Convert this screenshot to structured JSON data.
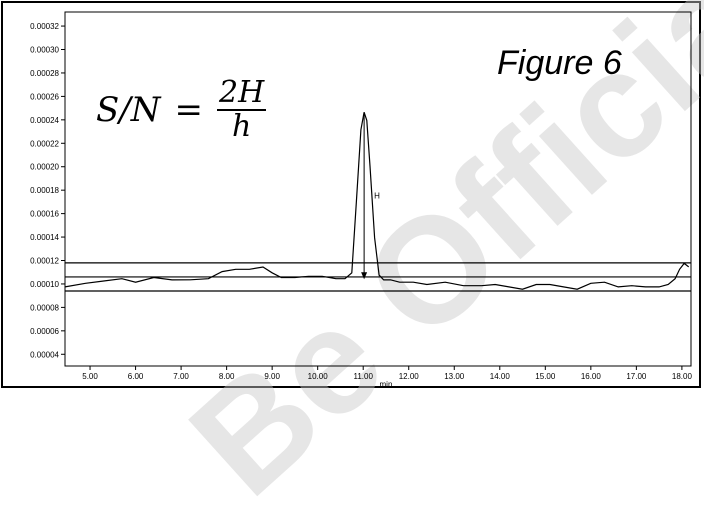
{
  "figure_label": "Figure 6",
  "formula": {
    "lhs": "S/N",
    "eq": "=",
    "numerator": "2H",
    "denominator": "h"
  },
  "watermark": "Be Official",
  "chart_data": {
    "type": "line",
    "title": "",
    "xlabel": "min",
    "ylabel": "",
    "xlim": [
      4.45,
      18.2
    ],
    "ylim": [
      3e-05,
      0.000332
    ],
    "x_ticks": [
      5,
      6,
      7,
      8,
      9,
      10,
      11,
      12,
      13,
      14,
      15,
      16,
      17,
      18
    ],
    "x_tick_labels": [
      "5.00",
      "6.00",
      "7.00",
      "8.00",
      "9.00",
      "10.00",
      "11.00",
      "12.00",
      "13.00",
      "14.00",
      "15.00",
      "16.00",
      "17.00",
      "18.00"
    ],
    "y_ticks": [
      4e-05,
      6e-05,
      8e-05,
      0.0001,
      0.00012,
      0.00014,
      0.00016,
      0.00018,
      0.0002,
      0.00022,
      0.00024,
      0.00026,
      0.00028,
      0.0003,
      0.00032
    ],
    "y_tick_labels": [
      "0.00004",
      "0.00006",
      "0.00008",
      "0.00010",
      "0.00012",
      "0.00014",
      "0.00016",
      "0.00018",
      "0.00020",
      "0.00022",
      "0.00024",
      "0.00026",
      "0.00028",
      "0.00030",
      "0.00032"
    ],
    "series": [
      {
        "x": [
          4.45,
          4.9,
          5.3,
          5.7,
          6.0,
          6.4,
          6.8,
          7.2,
          7.6,
          7.9,
          8.2,
          8.5,
          8.8,
          9.0,
          9.2,
          9.5,
          9.8,
          10.1,
          10.4,
          10.6,
          10.75,
          10.85,
          10.95,
          11.02,
          11.08,
          11.15,
          11.25,
          11.35,
          11.45,
          11.6,
          11.8,
          12.1,
          12.4,
          12.8,
          13.2,
          13.6,
          13.9,
          14.2,
          14.5,
          14.8,
          15.1,
          15.4,
          15.7,
          16.0,
          16.3,
          16.6,
          16.9,
          17.2,
          17.5,
          17.7,
          17.85,
          17.95,
          18.05,
          18.15
        ],
        "y": [
          9.8e-05,
          0.0001,
          0.000103,
          0.000104,
          0.000102,
          0.000105,
          0.000104,
          0.000103,
          0.000105,
          0.00011,
          0.000113,
          0.000112,
          0.000115,
          0.000109,
          0.000106,
          0.000105,
          0.000107,
          0.000106,
          0.000105,
          0.000104,
          0.00011,
          0.00017,
          0.000232,
          0.000246,
          0.00024,
          0.0002,
          0.00014,
          0.000107,
          0.000104,
          0.000103,
          0.000102,
          0.000101,
          0.0001,
          0.000101,
          9.9e-05,
          9.8e-05,
          0.0001,
          9.7e-05,
          9.6e-05,
          9.9e-05,
          0.0001,
          9.7e-05,
          9.6e-05,
          0.0001,
          0.000102,
          9.7e-05,
          9.9e-05,
          9.7e-05,
          9.8e-05,
          9.9e-05,
          0.000105,
          0.000112,
          0.000118,
          0.000114
        ]
      }
    ],
    "reference_lines": [
      0.000118,
      0.000106,
      9.4e-05
    ],
    "peak": {
      "x": 11.02,
      "y_top": 0.000246,
      "y_base": 0.000104,
      "label": "H"
    }
  }
}
